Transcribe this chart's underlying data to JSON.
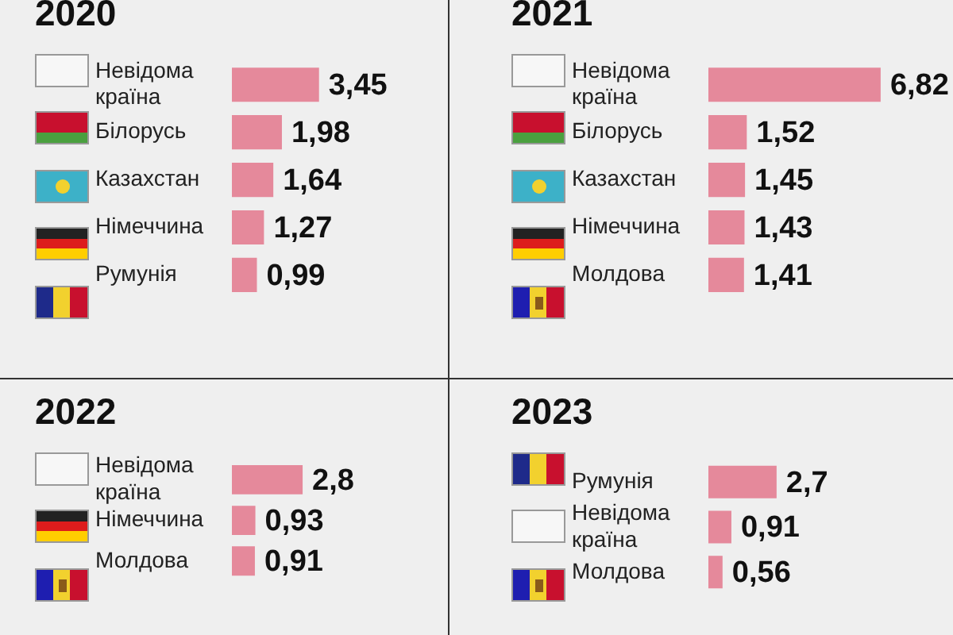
{
  "chart_data": [
    {
      "type": "bar",
      "orientation": "horizontal",
      "title": "2020",
      "categories": [
        "Невідома країна",
        "Білорусь",
        "Казахстан",
        "Німеччина",
        "Румунія"
      ],
      "values": [
        3.45,
        1.98,
        1.64,
        1.27,
        0.99
      ],
      "value_labels": [
        "3,45",
        "1,98",
        "1,64",
        "1,27",
        "0,99"
      ],
      "color": "#e5899b"
    },
    {
      "type": "bar",
      "orientation": "horizontal",
      "title": "2021",
      "categories": [
        "Невідома країна",
        "Білорусь",
        "Казахстан",
        "Німеччина",
        "Молдова"
      ],
      "values": [
        6.82,
        1.52,
        1.45,
        1.43,
        1.41
      ],
      "value_labels": [
        "6,82",
        "1,52",
        "1,45",
        "1,43",
        "1,41"
      ],
      "color": "#e5899b"
    },
    {
      "type": "bar",
      "orientation": "horizontal",
      "title": "2022",
      "categories": [
        "Невідома країна",
        "Німеччина",
        "Молдова"
      ],
      "values": [
        2.8,
        0.93,
        0.91
      ],
      "value_labels": [
        "2,8",
        "0,93",
        "0,91"
      ],
      "color": "#e5899b"
    },
    {
      "type": "bar",
      "orientation": "horizontal",
      "title": "2023",
      "categories": [
        "Румунія",
        "Невідома країна",
        "Молдова"
      ],
      "values": [
        2.7,
        0.91,
        0.56
      ],
      "value_labels": [
        "2,7",
        "0,91",
        "0,56"
      ],
      "color": "#e5899b"
    }
  ]
}
